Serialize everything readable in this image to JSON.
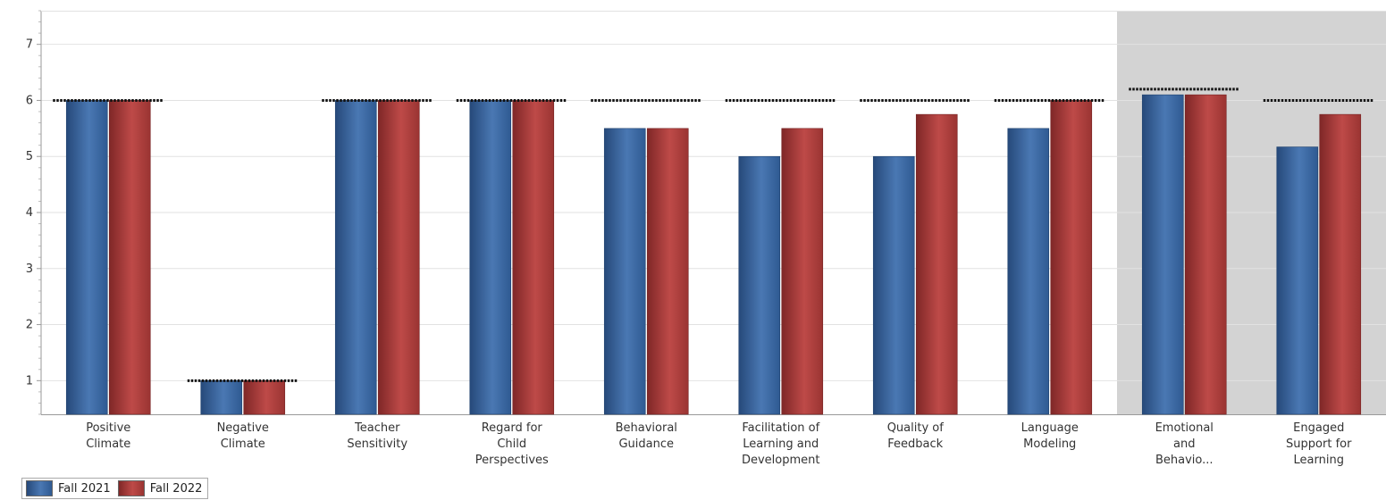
{
  "chart_data": {
    "type": "bar",
    "categories": [
      "Positive Climate",
      "Negative Climate",
      "Teacher Sensitivity",
      "Regard for Child Perspectives",
      "Behavioral Guidance",
      "Facilitation of Learning and Development",
      "Quality of Feedback",
      "Language Modeling",
      "Emotional and Behavio...",
      "Engaged Support for Learning"
    ],
    "category_label_lines": [
      [
        "Positive",
        "Climate"
      ],
      [
        "Negative",
        "Climate"
      ],
      [
        "Teacher",
        "Sensitivity"
      ],
      [
        "Regard for",
        "Child",
        "Perspectives"
      ],
      [
        "Behavioral",
        "Guidance"
      ],
      [
        "Facilitation of",
        "Learning and",
        "Development"
      ],
      [
        "Quality of",
        "Feedback"
      ],
      [
        "Language",
        "Modeling"
      ],
      [
        "Emotional",
        "and",
        "Behavio..."
      ],
      [
        "Engaged",
        "Support for",
        "Learning"
      ]
    ],
    "series": [
      {
        "name": "Fall 2021",
        "color": "#3a66a0",
        "values": [
          6.0,
          1.0,
          6.0,
          6.0,
          5.5,
          5.0,
          5.0,
          5.5,
          6.1,
          5.17
        ]
      },
      {
        "name": "Fall 2022",
        "color": "#b1403e",
        "values": [
          6.0,
          1.0,
          6.0,
          6.0,
          5.5,
          5.5,
          5.75,
          6.0,
          6.1,
          5.75
        ]
      }
    ],
    "target_lines": [
      6.0,
      1.0,
      6.0,
      6.0,
      6.0,
      6.0,
      6.0,
      6.0,
      6.2,
      6.0
    ],
    "highlighted_categories": [
      "Emotional and Behavio...",
      "Engaged Support for Learning"
    ],
    "ylim": [
      0.4,
      7.6
    ],
    "y_ticks": [
      1,
      2,
      3,
      4,
      5,
      6,
      7
    ],
    "title": "",
    "xlabel": "",
    "ylabel": "",
    "grid": true,
    "legend": "bottom-left"
  }
}
